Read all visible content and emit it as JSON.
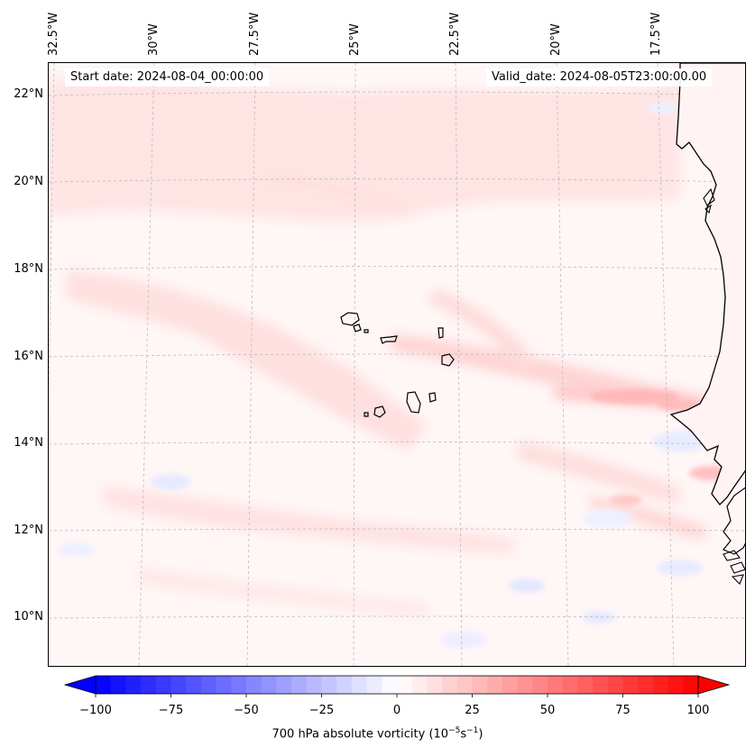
{
  "title": {
    "start_date": "Start date: 2024-08-04_00:00:00",
    "valid_date": "Valid_date: 2024-08-05T23:00:00.00"
  },
  "longitude_labels": [
    "32.5°W",
    "30°W",
    "27.5°W",
    "25°W",
    "22.5°W",
    "20°W",
    "17.5°W"
  ],
  "latitude_labels": [
    "22°N",
    "20°N",
    "18°N",
    "16°N",
    "14°N",
    "12°N",
    "10°N"
  ],
  "colorbar": {
    "label_prefix": "700 hPa absolute vorticity (10",
    "label_exp1": "−5",
    "label_mid": "s",
    "label_exp2": "−1",
    "label_suffix": ")",
    "ticks": [
      "−100",
      "−75",
      "−50",
      "−25",
      "0",
      "25",
      "50",
      "75",
      "100"
    ],
    "min": -100,
    "max": 100,
    "levels": 41,
    "low_color": "#0000ff",
    "mid_color": "#ffffff",
    "high_color": "#ff0000"
  },
  "map": {
    "variable": "700 hPa absolute vorticity",
    "extent_lon": [
      -32.5,
      -15.5
    ],
    "extent_lat": [
      9,
      22.8
    ],
    "coastline_color": "#000000",
    "gridline_color": "#bbbbbb"
  }
}
